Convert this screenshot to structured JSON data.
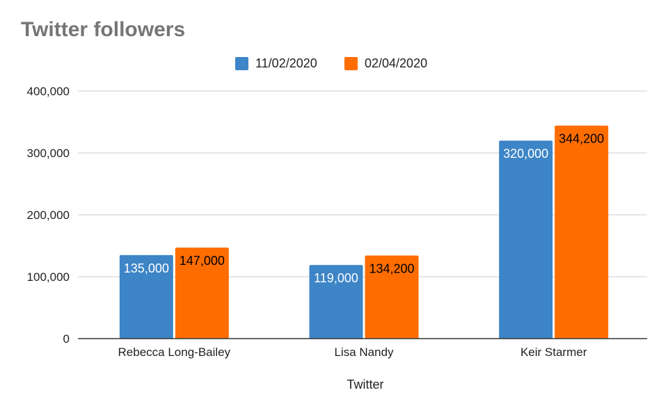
{
  "chart_data": {
    "type": "bar",
    "title": "Twitter followers",
    "xlabel": "Twitter",
    "ylabel": "",
    "categories": [
      "Rebecca Long-Bailey",
      "Lisa Nandy",
      "Keir Starmer"
    ],
    "series": [
      {
        "name": "11/02/2020",
        "values": [
          135000,
          119000,
          320000
        ],
        "color": "#3d85c6",
        "labels": [
          "135,000",
          "119,000",
          "320,000"
        ],
        "label_color": "#ffffff"
      },
      {
        "name": "02/04/2020",
        "values": [
          147000,
          134200,
          344200
        ],
        "color": "#ff6d01",
        "labels": [
          "147,000",
          "134,200",
          "344,200"
        ],
        "label_color": "#000000"
      }
    ],
    "ylim": [
      0,
      400000
    ],
    "yticks": [
      0,
      100000,
      200000,
      300000,
      400000
    ],
    "ytick_labels": [
      "0",
      "100,000",
      "200,000",
      "300,000",
      "400,000"
    ],
    "grid": true,
    "legend_position": "top-center"
  }
}
